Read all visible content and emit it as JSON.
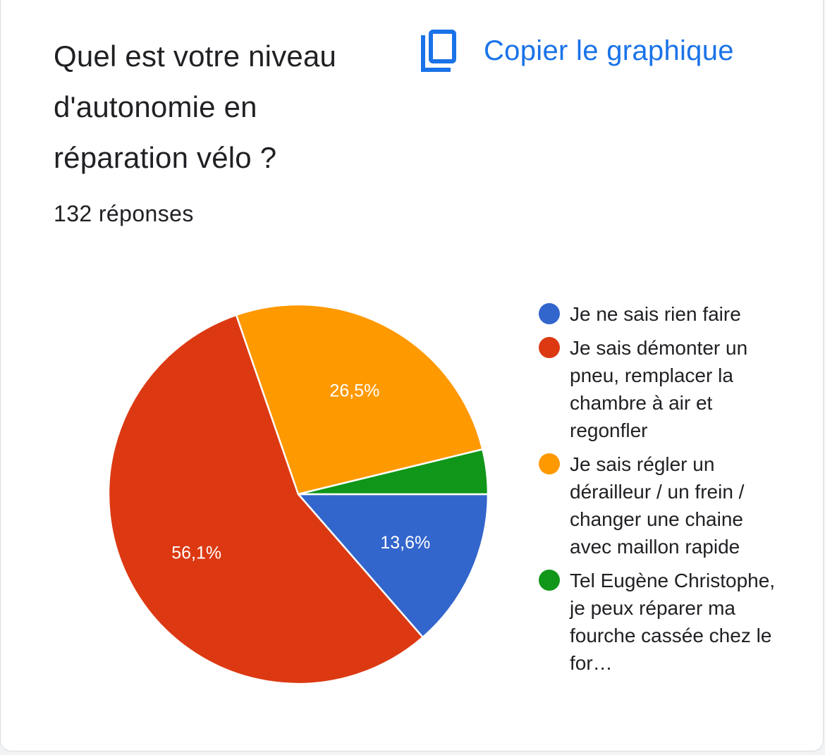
{
  "header": {
    "title": "Quel est votre niveau d'autonomie en réparation vélo ?",
    "copy_label": "Copier le graphique",
    "copy_icon": "content-copy-icon",
    "accent_color": "#1a73e8"
  },
  "responses": "132 réponses",
  "chart_data": {
    "type": "pie",
    "legend_position": "right",
    "slices": [
      {
        "label": "Je ne sais rien faire",
        "value": 13.6,
        "display": "13,6%",
        "color": "#3366cc"
      },
      {
        "label": "Je sais démonter un pneu, remplacer la chambre à air et regonfler",
        "value": 56.1,
        "display": "56,1%",
        "color": "#dc3912"
      },
      {
        "label": "Je sais régler un dérailleur / un frein / changer une chaine avec maillon rapide",
        "value": 26.5,
        "display": "26,5%",
        "color": "#ff9900"
      },
      {
        "label": "Tel Eugène Christophe, je peux réparer ma fourche cassée chez le for…",
        "value": 3.8,
        "display": "",
        "color": "#109618"
      }
    ]
  }
}
